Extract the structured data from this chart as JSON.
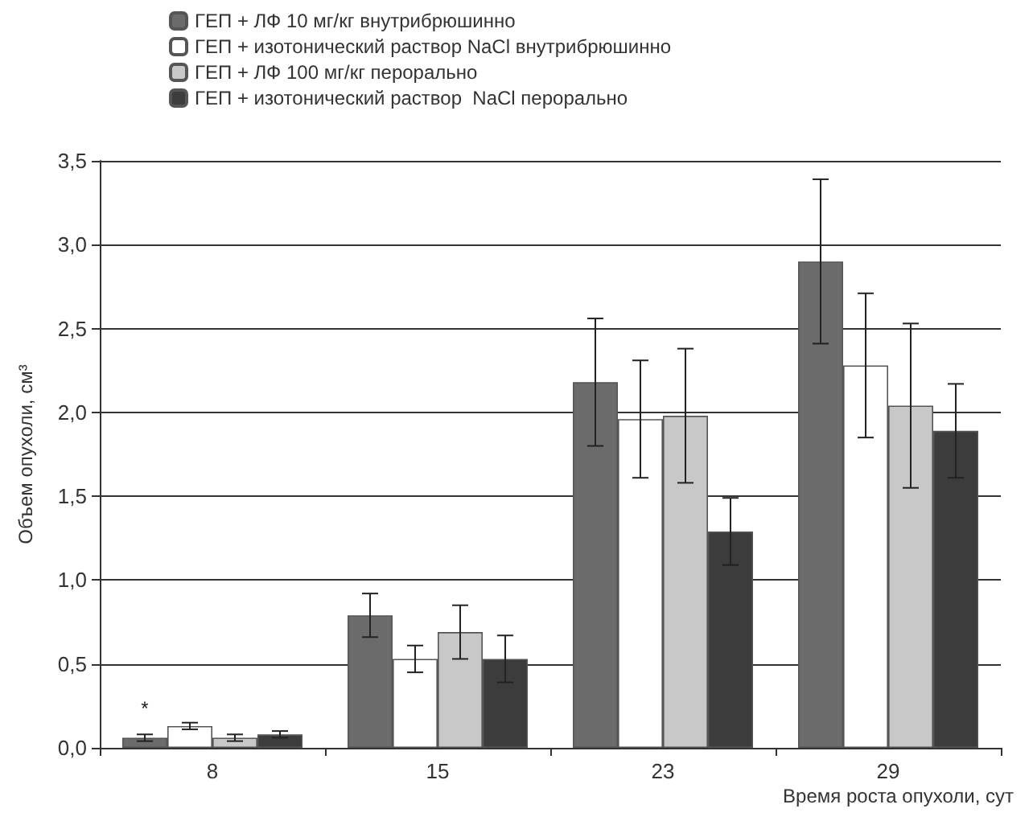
{
  "chart_data": {
    "type": "bar",
    "xlabel": "Время роста опухоли, сут",
    "ylabel": "Объем опухоли, см³",
    "categories": [
      "8",
      "15",
      "23",
      "29"
    ],
    "series": [
      {
        "name": "ГЕП + ЛФ 10 мг/кг внутрибрюшинно",
        "color": "#6b6b6b",
        "values": [
          0.06,
          0.79,
          2.18,
          2.9
        ],
        "errors": [
          0.02,
          0.13,
          0.38,
          0.49
        ],
        "value_labels": [
          "*",
          null,
          null,
          null
        ]
      },
      {
        "name": "ГЕП + изотонический раствор NaCl внутрибрюшинно",
        "color": "#ffffff",
        "values": [
          0.13,
          0.53,
          1.96,
          2.28
        ],
        "errors": [
          0.02,
          0.08,
          0.35,
          0.43
        ]
      },
      {
        "name": "ГЕП + ЛФ 100 мг/кг перорально",
        "color": "#c8c8c8",
        "values": [
          0.06,
          0.69,
          1.98,
          2.04
        ],
        "errors": [
          0.02,
          0.16,
          0.4,
          0.49
        ]
      },
      {
        "name": "ГЕП + изотонический раствор  NaCl перорально",
        "color": "#3c3c3c",
        "values": [
          0.08,
          0.53,
          1.29,
          1.89
        ],
        "errors": [
          0.02,
          0.14,
          0.2,
          0.28
        ]
      }
    ],
    "ylim": [
      0,
      3.5
    ],
    "yticks": [
      {
        "value": 0,
        "label": "0,0"
      },
      {
        "value": 0.5,
        "label": "0,5"
      },
      {
        "value": 1,
        "label": "1,0"
      },
      {
        "value": 1.5,
        "label": "1,5"
      },
      {
        "value": 2,
        "label": "2,0"
      },
      {
        "value": 2.5,
        "label": "2,5"
      },
      {
        "value": 3,
        "label": "3,0"
      },
      {
        "value": 3.5,
        "label": "3,5"
      }
    ],
    "grid": "y",
    "legend": "top left"
  }
}
